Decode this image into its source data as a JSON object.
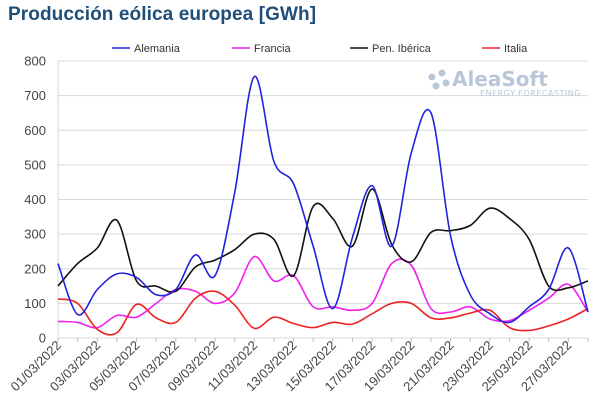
{
  "title": "Producción eólica europea [GWh]",
  "watermark": {
    "brand": "AleaSoft",
    "tagline": "ENERGY FORECASTING",
    "logo_icon": "aleasoft-logo-icon",
    "color": "#b8c7d8"
  },
  "chart_data": {
    "type": "line",
    "title": "Producción eólica europea [GWh]",
    "xlabel": "",
    "ylabel": "",
    "ylim": [
      0,
      800
    ],
    "yticks": [
      0,
      100,
      200,
      300,
      400,
      500,
      600,
      700,
      800
    ],
    "grid": true,
    "legend_position": "top",
    "x": [
      "01/03/2022",
      "02/03/2022",
      "03/03/2022",
      "04/03/2022",
      "05/03/2022",
      "06/03/2022",
      "07/03/2022",
      "08/03/2022",
      "09/03/2022",
      "10/03/2022",
      "11/03/2022",
      "12/03/2022",
      "13/03/2022",
      "14/03/2022",
      "15/03/2022",
      "16/03/2022",
      "17/03/2022",
      "18/03/2022",
      "19/03/2022",
      "20/03/2022",
      "21/03/2022",
      "22/03/2022",
      "23/03/2022",
      "24/03/2022",
      "25/03/2022",
      "26/03/2022",
      "27/03/2022",
      "28/03/2022"
    ],
    "xtick_labels": [
      "01/03/2022",
      "03/03/2022",
      "05/03/2022",
      "07/03/2022",
      "09/03/2022",
      "11/03/2022",
      "13/03/2022",
      "15/03/2022",
      "17/03/2022",
      "19/03/2022",
      "21/03/2022",
      "23/03/2022",
      "25/03/2022",
      "27/03/2022"
    ],
    "series": [
      {
        "name": "Alemania",
        "color": "#2222dd",
        "values": [
          215,
          68,
          140,
          185,
          175,
          125,
          140,
          240,
          180,
          420,
          755,
          510,
          445,
          265,
          85,
          290,
          440,
          265,
          535,
          650,
          295,
          125,
          70,
          45,
          90,
          140,
          260,
          75
        ]
      },
      {
        "name": "Francia",
        "color": "#ee22ee",
        "values": [
          48,
          45,
          30,
          65,
          60,
          100,
          140,
          135,
          100,
          130,
          235,
          165,
          180,
          90,
          90,
          80,
          100,
          215,
          210,
          85,
          75,
          90,
          55,
          50,
          80,
          115,
          155,
          75
        ]
      },
      {
        "name": "Pen. Ibérica",
        "color": "#111111",
        "values": [
          150,
          215,
          260,
          340,
          165,
          150,
          135,
          205,
          225,
          255,
          300,
          285,
          180,
          380,
          345,
          265,
          430,
          270,
          220,
          305,
          310,
          325,
          375,
          345,
          285,
          150,
          145,
          165
        ]
      },
      {
        "name": "Italia",
        "color": "#ee2222",
        "values": [
          113,
          100,
          25,
          15,
          97,
          58,
          45,
          115,
          135,
          95,
          28,
          60,
          42,
          30,
          45,
          40,
          70,
          100,
          100,
          58,
          58,
          72,
          80,
          30,
          22,
          35,
          55,
          85
        ]
      }
    ]
  }
}
